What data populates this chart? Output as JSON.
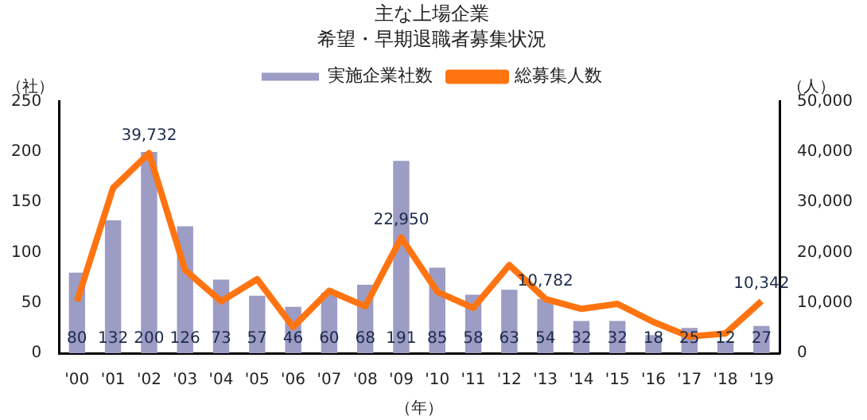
{
  "chart_data": {
    "type": "bar",
    "title": "主な上場企業",
    "subtitle": "希望・早期退職者募集状況",
    "xlabel": "（年）",
    "ylabel": "（社）",
    "y2label": "（人）",
    "categories": [
      "'00",
      "'01",
      "'02",
      "'03",
      "'04",
      "'05",
      "'06",
      "'07",
      "'08",
      "'09",
      "'10",
      "'11",
      "'12",
      "'13",
      "'14",
      "'15",
      "'16",
      "'17",
      "'18",
      "'19"
    ],
    "series": [
      {
        "name": "実施企業社数",
        "color": "#9c9cc4",
        "data_labels": true,
        "values": [
          80,
          132,
          200,
          126,
          73,
          57,
          46,
          60,
          68,
          191,
          85,
          58,
          63,
          54,
          32,
          32,
          18,
          25,
          12,
          27
        ]
      },
      {
        "name": "総募集人数",
        "type": "line",
        "axis": "y2",
        "color": "#ff7410",
        "marker": "none",
        "values": [
          10300,
          32800,
          39732,
          16500,
          10300,
          14700,
          5200,
          12400,
          9300,
          22950,
          12200,
          9000,
          17500,
          10782,
          8800,
          9800,
          6200,
          3300,
          3900,
          10342
        ],
        "value_labels": [
          null,
          null,
          "39,732",
          null,
          null,
          null,
          null,
          null,
          null,
          "22,950",
          null,
          null,
          null,
          "10,782",
          null,
          null,
          null,
          null,
          null,
          "10,342"
        ]
      }
    ],
    "ylim": [
      0,
      250
    ],
    "yticks": [
      0,
      50,
      100,
      150,
      200,
      250
    ],
    "y2lim": [
      0,
      50000
    ],
    "y2ticks": [
      0,
      {
        "value": 10000,
        "label": "10,000"
      },
      {
        "value": 20000,
        "label": "20,000"
      },
      {
        "value": 30000,
        "label": "30,000"
      },
      {
        "value": 40000,
        "label": "40,000"
      },
      {
        "value": 50000,
        "label": "50,000"
      }
    ],
    "grid": false,
    "legend": "top"
  }
}
